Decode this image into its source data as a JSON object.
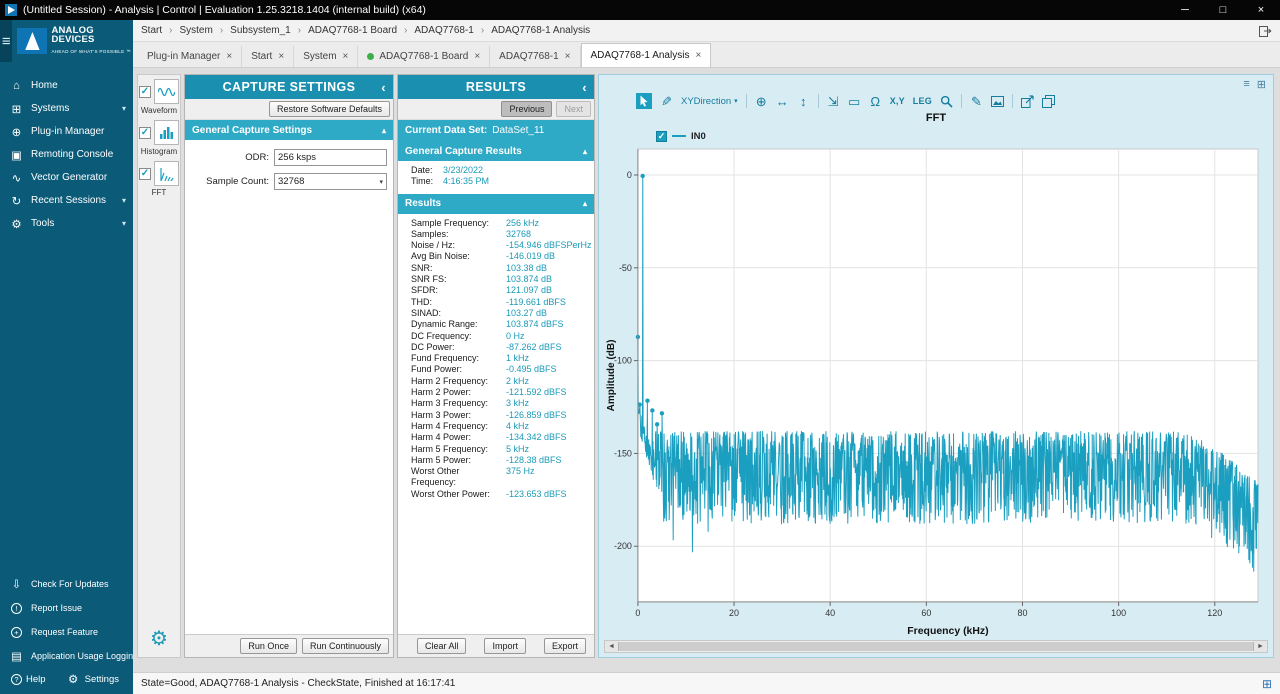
{
  "window": {
    "title": "(Untitled Session) - Analysis | Control | Evaluation 1.25.3218.1404 (internal build) (x64)"
  },
  "sidebar": {
    "brand": {
      "line1": "ANALOG",
      "line2": "DEVICES",
      "tagline": "AHEAD OF WHAT'S POSSIBLE ™"
    },
    "items": [
      {
        "label": "Home",
        "icon": "home-icon"
      },
      {
        "label": "Systems",
        "icon": "systems-icon",
        "chevron": true
      },
      {
        "label": "Plug-in Manager",
        "icon": "plugin-manager-icon"
      },
      {
        "label": "Remoting Console",
        "icon": "remoting-console-icon"
      },
      {
        "label": "Vector Generator",
        "icon": "vector-generator-icon"
      },
      {
        "label": "Recent Sessions",
        "icon": "recent-sessions-icon",
        "chevron": true
      },
      {
        "label": "Tools",
        "icon": "tools-icon",
        "chevron": true
      }
    ],
    "bottom_items": [
      {
        "label": "Check For Updates",
        "icon": "check-updates-icon"
      },
      {
        "label": "Report Issue",
        "icon": "report-issue-icon",
        "circled": true
      },
      {
        "label": "Request Feature",
        "icon": "request-feature-icon",
        "circled": true
      },
      {
        "label": "Application Usage Logging",
        "icon": "usage-logging-icon"
      }
    ],
    "help": {
      "label": "Help"
    },
    "settings": {
      "label": "Settings"
    }
  },
  "breadcrumb": {
    "items": [
      "Start",
      "System",
      "Subsystem_1",
      "ADAQ7768-1 Board",
      "ADAQ7768-1",
      "ADAQ7768-1 Analysis"
    ]
  },
  "tabs": [
    {
      "label": "Plug-in Manager"
    },
    {
      "label": "Start"
    },
    {
      "label": "System"
    },
    {
      "label": "ADAQ7768-1 Board",
      "dot": true
    },
    {
      "label": "ADAQ7768-1"
    },
    {
      "label": "ADAQ7768-1 Analysis",
      "active": true
    }
  ],
  "tools_strip": [
    {
      "label": "Waveform",
      "icon": "waveform-icon",
      "checked": true
    },
    {
      "label": "Histogram",
      "icon": "histogram-icon",
      "checked": true
    },
    {
      "label": "FFT",
      "icon": "fft-icon",
      "checked": true
    }
  ],
  "capture": {
    "title": "CAPTURE SETTINGS",
    "restore_button": "Restore Software Defaults",
    "section": "General Capture Settings",
    "odr_label": "ODR:",
    "odr_value": "256 ksps",
    "sample_count_label": "Sample Count:",
    "sample_count_value": "32768",
    "run_once": "Run Once",
    "run_continuously": "Run Continuously"
  },
  "results": {
    "title": "RESULTS",
    "previous": "Previous",
    "next": "Next",
    "current_dataset_label": "Current Data Set:",
    "current_dataset": "DataSet_11",
    "general_section": "General Capture Results",
    "date_label": "Date:",
    "date": "3/23/2022",
    "time_label": "Time:",
    "time": "4:16:35 PM",
    "results_section": "Results",
    "metrics": [
      {
        "label": "Sample Frequency:",
        "value": "256 kHz"
      },
      {
        "label": "Samples:",
        "value": "32768"
      },
      {
        "label": "Noise / Hz:",
        "value": "-154.946 dBFSPerHz"
      },
      {
        "label": "Avg Bin Noise:",
        "value": "-146.019 dB"
      },
      {
        "label": "SNR:",
        "value": "103.38 dB"
      },
      {
        "label": "SNR FS:",
        "value": "103.874 dB"
      },
      {
        "label": "SFDR:",
        "value": "121.097 dB"
      },
      {
        "label": "THD:",
        "value": "-119.661 dBFS"
      },
      {
        "label": "SINAD:",
        "value": "103.27 dB"
      },
      {
        "label": "Dynamic Range:",
        "value": "103.874 dBFS"
      },
      {
        "label": "DC Frequency:",
        "value": "0 Hz"
      },
      {
        "label": "DC Power:",
        "value": "-87.262 dBFS"
      },
      {
        "label": "Fund Frequency:",
        "value": "1 kHz"
      },
      {
        "label": "Fund Power:",
        "value": "-0.495 dBFS"
      },
      {
        "label": "Harm 2 Frequency:",
        "value": "2 kHz"
      },
      {
        "label": "Harm 2 Power:",
        "value": "-121.592 dBFS"
      },
      {
        "label": "Harm 3 Frequency:",
        "value": "3 kHz"
      },
      {
        "label": "Harm 3 Power:",
        "value": "-126.859 dBFS"
      },
      {
        "label": "Harm 4 Frequency:",
        "value": "4 kHz"
      },
      {
        "label": "Harm 4 Power:",
        "value": "-134.342 dBFS"
      },
      {
        "label": "Harm 5 Frequency:",
        "value": "5 kHz"
      },
      {
        "label": "Harm 5 Power:",
        "value": "-128.38 dBFS"
      },
      {
        "label": "Worst Other Frequency:",
        "value": "375 Hz"
      },
      {
        "label": "Worst Other Power:",
        "value": "-123.653 dBFS"
      }
    ],
    "clear_all": "Clear All",
    "import": "Import",
    "export": "Export"
  },
  "chart_toolbar": {
    "items": [
      {
        "name": "pointer-icon",
        "type": "chip"
      },
      {
        "name": "brush-icon",
        "type": "icon"
      },
      {
        "name": "xy-direction-dropdown",
        "type": "dropdown",
        "label": "XYDirection"
      },
      {
        "type": "sep"
      },
      {
        "name": "pan-icon",
        "type": "icon"
      },
      {
        "name": "horizontal-scale-icon",
        "type": "icon"
      },
      {
        "name": "vertical-scale-icon",
        "type": "icon"
      },
      {
        "type": "sep"
      },
      {
        "name": "zoom-fit-icon",
        "type": "icon"
      },
      {
        "name": "box-zoom-icon",
        "type": "icon"
      },
      {
        "name": "omega-icon",
        "type": "icon"
      },
      {
        "name": "xy-values-icon",
        "type": "text",
        "label": "X,Y"
      },
      {
        "name": "legend-toggle-icon",
        "type": "text",
        "label": "LEG"
      },
      {
        "name": "magnifier-icon",
        "type": "icon"
      },
      {
        "type": "sep"
      },
      {
        "name": "pencil-icon",
        "type": "icon"
      },
      {
        "name": "snapshot-icon",
        "type": "icon"
      },
      {
        "type": "sep"
      },
      {
        "name": "export-image-icon",
        "type": "icon"
      },
      {
        "name": "copy-chart-icon",
        "type": "icon"
      }
    ]
  },
  "chart_data": {
    "type": "line",
    "title": "FFT",
    "xlabel": "Frequency (kHz)",
    "ylabel": "Amplitude (dB)",
    "xlim": [
      0,
      129
    ],
    "ylim": [
      -230,
      14
    ],
    "xticks": [
      0,
      20,
      40,
      60,
      80,
      100,
      120
    ],
    "yticks": [
      0,
      -50,
      -100,
      -150,
      -200
    ],
    "grid": true,
    "legend_position": "top-left",
    "series": [
      {
        "name": "IN0",
        "color": "#1b9fc0",
        "key_points": [
          {
            "x": 0,
            "y": -87.262,
            "label": "DC"
          },
          {
            "x": 0.375,
            "y": -123.653,
            "label": "Worst Other"
          },
          {
            "x": 1,
            "y": -0.495,
            "label": "Fundamental"
          },
          {
            "x": 2,
            "y": -121.592,
            "label": "Harm 2"
          },
          {
            "x": 3,
            "y": -126.859,
            "label": "Harm 3"
          },
          {
            "x": 4,
            "y": -134.342,
            "label": "Harm 4"
          },
          {
            "x": 5,
            "y": -128.38,
            "label": "Harm 5"
          }
        ],
        "noise_floor": {
          "top_db": -138,
          "spread_db": 50,
          "low_freq_raised_db": -122,
          "low_freq_extent_khz": 5,
          "rolloff_start_khz": 112,
          "rolloff_db": 28
        }
      }
    ]
  },
  "status_bar": {
    "text": "State=Good, ADAQ7768-1 Analysis - CheckState, Finished at 16:17:41"
  },
  "colors": {
    "sidebar_bg": "#0a5a78",
    "panel_header_teal": "#1a8fb0",
    "section_teal": "#2ea9c6",
    "accent_teal": "#1b9bb8",
    "trace_teal": "#1b9fc0",
    "tab_dot_green": "#3fae49"
  }
}
